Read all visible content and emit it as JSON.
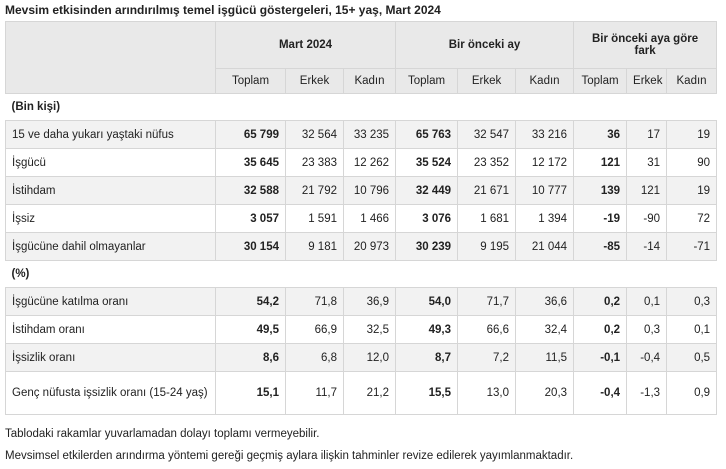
{
  "title": "Mevsim etkisinden arındırılmış temel işgücü göstergeleri, 15+ yaş, Mart 2024",
  "table": {
    "groups": [
      "Mart 2024",
      "Bir önceki ay",
      "Bir önceki aya göre fark"
    ],
    "subheaders": [
      "Toplam",
      "Erkek",
      "Kadın",
      "Toplam",
      "Erkek",
      "Kadın",
      "Toplam",
      "Erkek",
      "Kadın"
    ],
    "rows": [
      {
        "label": "(Bin kişi)"
      },
      {
        "label": "15 ve daha yukarı yaştaki nüfus",
        "values": [
          "65 799",
          "32 564",
          "33 235",
          "65 763",
          "32 547",
          "33 216",
          "36",
          "17",
          "19"
        ]
      },
      {
        "label": "İşgücü",
        "values": [
          "35 645",
          "23 383",
          "12 262",
          "35 524",
          "23 352",
          "12 172",
          "121",
          "31",
          "90"
        ]
      },
      {
        "label": "İstihdam",
        "values": [
          "32 588",
          "21 792",
          "10 796",
          "32 449",
          "21 671",
          "10 777",
          "139",
          "121",
          "19"
        ]
      },
      {
        "label": "İşsiz",
        "values": [
          "3 057",
          "1 591",
          "1 466",
          "3 076",
          "1 681",
          "1 394",
          "-19",
          "-90",
          "72"
        ]
      },
      {
        "label": "İşgücüne dahil olmayanlar",
        "values": [
          "30 154",
          "9 181",
          "20 973",
          "30 239",
          "9 195",
          "21 044",
          "-85",
          "-14",
          "-71"
        ]
      },
      {
        "label": "(%)"
      },
      {
        "label": "İşgücüne katılma oranı",
        "values": [
          "54,2",
          "71,8",
          "36,9",
          "54,0",
          "71,7",
          "36,6",
          "0,2",
          "0,1",
          "0,3"
        ]
      },
      {
        "label": "İstihdam oranı",
        "values": [
          "49,5",
          "66,9",
          "32,5",
          "49,3",
          "66,6",
          "32,4",
          "0,2",
          "0,3",
          "0,1"
        ]
      },
      {
        "label": "İşsizlik oranı",
        "values": [
          "8,6",
          "6,8",
          "12,0",
          "8,7",
          "7,2",
          "11,5",
          "-0,1",
          "-0,4",
          "0,5"
        ]
      },
      {
        "label": "Genç nüfusta işsizlik oranı (15-24 yaş)",
        "values": [
          "15,1",
          "11,7",
          "21,2",
          "15,5",
          "13,0",
          "20,3",
          "-0,4",
          "-1,3",
          "0,9"
        ]
      }
    ]
  },
  "notes": [
    "Tablodaki rakamlar yuvarlamadan dolayı toplamı vermeyebilir.",
    "Mevsimsel etkilerden arındırma yöntemi gereği geçmiş aylara ilişkin tahminler revize edilerek yayımlanmaktadır."
  ]
}
